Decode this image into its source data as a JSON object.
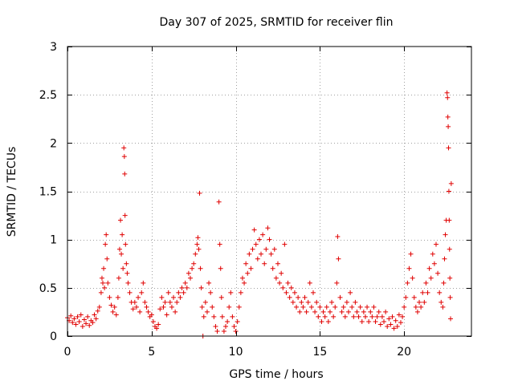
{
  "chart_data": {
    "type": "scatter",
    "title": "Day 307 of 2025, SRMTID for receiver flin",
    "xlabel": "GPS time / hours",
    "ylabel": "SRMTID / TECUs",
    "xlim": [
      0,
      24
    ],
    "ylim": [
      0,
      3
    ],
    "xticks": [
      0,
      5,
      10,
      15,
      20
    ],
    "xtick_labels": [
      "0",
      "5",
      "10",
      "15",
      "20"
    ],
    "yticks": [
      0,
      0.5,
      1,
      1.5,
      2,
      2.5,
      3
    ],
    "ytick_labels": [
      "0",
      "0.5",
      "1",
      "1.5",
      "2",
      "2.5",
      "3"
    ],
    "grid": true,
    "marker": "plus",
    "series": [
      {
        "name": "SRMTID",
        "color": "#e00000",
        "points": [
          [
            0.0,
            0.19
          ],
          [
            0.1,
            0.16
          ],
          [
            0.2,
            0.21
          ],
          [
            0.3,
            0.14
          ],
          [
            0.4,
            0.18
          ],
          [
            0.5,
            0.12
          ],
          [
            0.6,
            0.2
          ],
          [
            0.7,
            0.15
          ],
          [
            0.8,
            0.22
          ],
          [
            0.9,
            0.1
          ],
          [
            1.0,
            0.17
          ],
          [
            1.1,
            0.13
          ],
          [
            1.2,
            0.2
          ],
          [
            1.3,
            0.11
          ],
          [
            1.4,
            0.16
          ],
          [
            1.5,
            0.14
          ],
          [
            1.6,
            0.22
          ],
          [
            1.7,
            0.18
          ],
          [
            1.8,
            0.26
          ],
          [
            1.9,
            0.3
          ],
          [
            2.0,
            0.45
          ],
          [
            2.05,
            0.6
          ],
          [
            2.1,
            0.55
          ],
          [
            2.15,
            0.7
          ],
          [
            2.2,
            0.5
          ],
          [
            2.25,
            0.95
          ],
          [
            2.3,
            1.05
          ],
          [
            2.35,
            0.8
          ],
          [
            2.4,
            0.55
          ],
          [
            2.5,
            0.4
          ],
          [
            2.6,
            0.32
          ],
          [
            2.7,
            0.25
          ],
          [
            2.8,
            0.3
          ],
          [
            2.9,
            0.22
          ],
          [
            3.0,
            0.4
          ],
          [
            3.05,
            0.6
          ],
          [
            3.1,
            0.9
          ],
          [
            3.15,
            1.2
          ],
          [
            3.2,
            0.85
          ],
          [
            3.25,
            1.05
          ],
          [
            3.3,
            0.7
          ],
          [
            3.35,
            1.95
          ],
          [
            3.38,
            1.86
          ],
          [
            3.4,
            1.68
          ],
          [
            3.42,
            1.25
          ],
          [
            3.45,
            0.95
          ],
          [
            3.5,
            0.75
          ],
          [
            3.55,
            0.65
          ],
          [
            3.6,
            0.55
          ],
          [
            3.7,
            0.45
          ],
          [
            3.8,
            0.35
          ],
          [
            3.9,
            0.28
          ],
          [
            4.0,
            0.35
          ],
          [
            4.1,
            0.3
          ],
          [
            4.2,
            0.4
          ],
          [
            4.3,
            0.25
          ],
          [
            4.4,
            0.45
          ],
          [
            4.5,
            0.55
          ],
          [
            4.6,
            0.35
          ],
          [
            4.7,
            0.3
          ],
          [
            4.8,
            0.25
          ],
          [
            4.9,
            0.2
          ],
          [
            5.0,
            0.22
          ],
          [
            5.1,
            0.15
          ],
          [
            5.2,
            0.1
          ],
          [
            5.3,
            0.08
          ],
          [
            5.4,
            0.12
          ],
          [
            5.5,
            0.28
          ],
          [
            5.6,
            0.4
          ],
          [
            5.7,
            0.3
          ],
          [
            5.8,
            0.35
          ],
          [
            5.9,
            0.22
          ],
          [
            6.0,
            0.45
          ],
          [
            6.1,
            0.35
          ],
          [
            6.2,
            0.3
          ],
          [
            6.3,
            0.4
          ],
          [
            6.4,
            0.25
          ],
          [
            6.5,
            0.35
          ],
          [
            6.6,
            0.45
          ],
          [
            6.7,
            0.4
          ],
          [
            6.8,
            0.5
          ],
          [
            6.9,
            0.45
          ],
          [
            7.0,
            0.55
          ],
          [
            7.1,
            0.5
          ],
          [
            7.2,
            0.65
          ],
          [
            7.3,
            0.6
          ],
          [
            7.4,
            0.7
          ],
          [
            7.5,
            0.75
          ],
          [
            7.6,
            0.85
          ],
          [
            7.7,
            0.95
          ],
          [
            7.75,
            1.02
          ],
          [
            7.8,
            0.9
          ],
          [
            7.85,
            1.48
          ],
          [
            7.9,
            0.7
          ],
          [
            7.95,
            0.5
          ],
          [
            8.0,
            0.3
          ],
          [
            8.05,
            0.0
          ],
          [
            8.1,
            0.2
          ],
          [
            8.2,
            0.35
          ],
          [
            8.3,
            0.25
          ],
          [
            8.4,
            0.55
          ],
          [
            8.5,
            0.45
          ],
          [
            8.6,
            0.3
          ],
          [
            8.7,
            0.2
          ],
          [
            8.8,
            0.1
          ],
          [
            8.9,
            0.05
          ],
          [
            9.0,
            1.39
          ],
          [
            9.05,
            0.95
          ],
          [
            9.1,
            0.7
          ],
          [
            9.15,
            0.4
          ],
          [
            9.2,
            0.2
          ],
          [
            9.3,
            0.05
          ],
          [
            9.4,
            0.1
          ],
          [
            9.5,
            0.15
          ],
          [
            9.6,
            0.3
          ],
          [
            9.7,
            0.45
          ],
          [
            9.8,
            0.2
          ],
          [
            9.9,
            0.1
          ],
          [
            10.0,
            0.05
          ],
          [
            10.1,
            0.15
          ],
          [
            10.2,
            0.3
          ],
          [
            10.3,
            0.45
          ],
          [
            10.4,
            0.6
          ],
          [
            10.5,
            0.55
          ],
          [
            10.6,
            0.75
          ],
          [
            10.7,
            0.65
          ],
          [
            10.8,
            0.85
          ],
          [
            10.9,
            0.7
          ],
          [
            11.0,
            0.9
          ],
          [
            11.1,
            1.1
          ],
          [
            11.2,
            0.95
          ],
          [
            11.3,
            0.8
          ],
          [
            11.4,
            1.0
          ],
          [
            11.5,
            0.85
          ],
          [
            11.6,
            1.05
          ],
          [
            11.7,
            0.75
          ],
          [
            11.8,
            0.9
          ],
          [
            11.9,
            1.12
          ],
          [
            12.0,
            1.0
          ],
          [
            12.1,
            0.85
          ],
          [
            12.2,
            0.7
          ],
          [
            12.3,
            0.9
          ],
          [
            12.4,
            0.6
          ],
          [
            12.5,
            0.75
          ],
          [
            12.6,
            0.55
          ],
          [
            12.7,
            0.65
          ],
          [
            12.8,
            0.5
          ],
          [
            12.9,
            0.95
          ],
          [
            13.0,
            0.45
          ],
          [
            13.1,
            0.55
          ],
          [
            13.2,
            0.4
          ],
          [
            13.3,
            0.5
          ],
          [
            13.4,
            0.35
          ],
          [
            13.5,
            0.45
          ],
          [
            13.6,
            0.3
          ],
          [
            13.7,
            0.4
          ],
          [
            13.8,
            0.25
          ],
          [
            13.9,
            0.35
          ],
          [
            14.0,
            0.3
          ],
          [
            14.1,
            0.4
          ],
          [
            14.2,
            0.25
          ],
          [
            14.3,
            0.35
          ],
          [
            14.4,
            0.55
          ],
          [
            14.5,
            0.3
          ],
          [
            14.6,
            0.45
          ],
          [
            14.7,
            0.25
          ],
          [
            14.8,
            0.35
          ],
          [
            14.9,
            0.2
          ],
          [
            15.0,
            0.3
          ],
          [
            15.1,
            0.15
          ],
          [
            15.2,
            0.25
          ],
          [
            15.3,
            0.2
          ],
          [
            15.4,
            0.3
          ],
          [
            15.5,
            0.15
          ],
          [
            15.6,
            0.25
          ],
          [
            15.7,
            0.35
          ],
          [
            15.8,
            0.2
          ],
          [
            15.9,
            0.3
          ],
          [
            16.0,
            0.55
          ],
          [
            16.05,
            1.03
          ],
          [
            16.1,
            0.8
          ],
          [
            16.2,
            0.4
          ],
          [
            16.3,
            0.25
          ],
          [
            16.4,
            0.3
          ],
          [
            16.5,
            0.2
          ],
          [
            16.6,
            0.35
          ],
          [
            16.7,
            0.25
          ],
          [
            16.8,
            0.45
          ],
          [
            16.9,
            0.3
          ],
          [
            17.0,
            0.2
          ],
          [
            17.1,
            0.35
          ],
          [
            17.2,
            0.25
          ],
          [
            17.3,
            0.2
          ],
          [
            17.4,
            0.3
          ],
          [
            17.5,
            0.15
          ],
          [
            17.6,
            0.25
          ],
          [
            17.7,
            0.2
          ],
          [
            17.8,
            0.3
          ],
          [
            17.9,
            0.15
          ],
          [
            18.0,
            0.25
          ],
          [
            18.1,
            0.2
          ],
          [
            18.2,
            0.3
          ],
          [
            18.3,
            0.15
          ],
          [
            18.4,
            0.2
          ],
          [
            18.5,
            0.25
          ],
          [
            18.6,
            0.12
          ],
          [
            18.7,
            0.2
          ],
          [
            18.8,
            0.15
          ],
          [
            18.9,
            0.25
          ],
          [
            19.0,
            0.1
          ],
          [
            19.1,
            0.18
          ],
          [
            19.2,
            0.12
          ],
          [
            19.3,
            0.2
          ],
          [
            19.4,
            0.08
          ],
          [
            19.5,
            0.16
          ],
          [
            19.6,
            0.1
          ],
          [
            19.7,
            0.22
          ],
          [
            19.8,
            0.14
          ],
          [
            19.9,
            0.2
          ],
          [
            20.0,
            0.3
          ],
          [
            20.1,
            0.4
          ],
          [
            20.2,
            0.55
          ],
          [
            20.3,
            0.7
          ],
          [
            20.4,
            0.85
          ],
          [
            20.5,
            0.6
          ],
          [
            20.6,
            0.4
          ],
          [
            20.7,
            0.3
          ],
          [
            20.8,
            0.25
          ],
          [
            20.9,
            0.35
          ],
          [
            21.0,
            0.3
          ],
          [
            21.1,
            0.45
          ],
          [
            21.2,
            0.35
          ],
          [
            21.3,
            0.55
          ],
          [
            21.4,
            0.45
          ],
          [
            21.5,
            0.7
          ],
          [
            21.6,
            0.6
          ],
          [
            21.7,
            0.85
          ],
          [
            21.8,
            0.75
          ],
          [
            21.9,
            0.95
          ],
          [
            22.0,
            0.65
          ],
          [
            22.1,
            0.45
          ],
          [
            22.2,
            0.35
          ],
          [
            22.3,
            0.3
          ],
          [
            22.35,
            0.55
          ],
          [
            22.4,
            0.8
          ],
          [
            22.45,
            1.05
          ],
          [
            22.5,
            1.2
          ],
          [
            22.55,
            2.52
          ],
          [
            22.58,
            2.47
          ],
          [
            22.6,
            2.27
          ],
          [
            22.62,
            2.17
          ],
          [
            22.64,
            1.95
          ],
          [
            22.66,
            1.5
          ],
          [
            22.68,
            1.2
          ],
          [
            22.7,
            0.9
          ],
          [
            22.72,
            0.6
          ],
          [
            22.74,
            0.4
          ],
          [
            22.76,
            0.18
          ],
          [
            22.8,
            1.58
          ]
        ]
      }
    ]
  }
}
